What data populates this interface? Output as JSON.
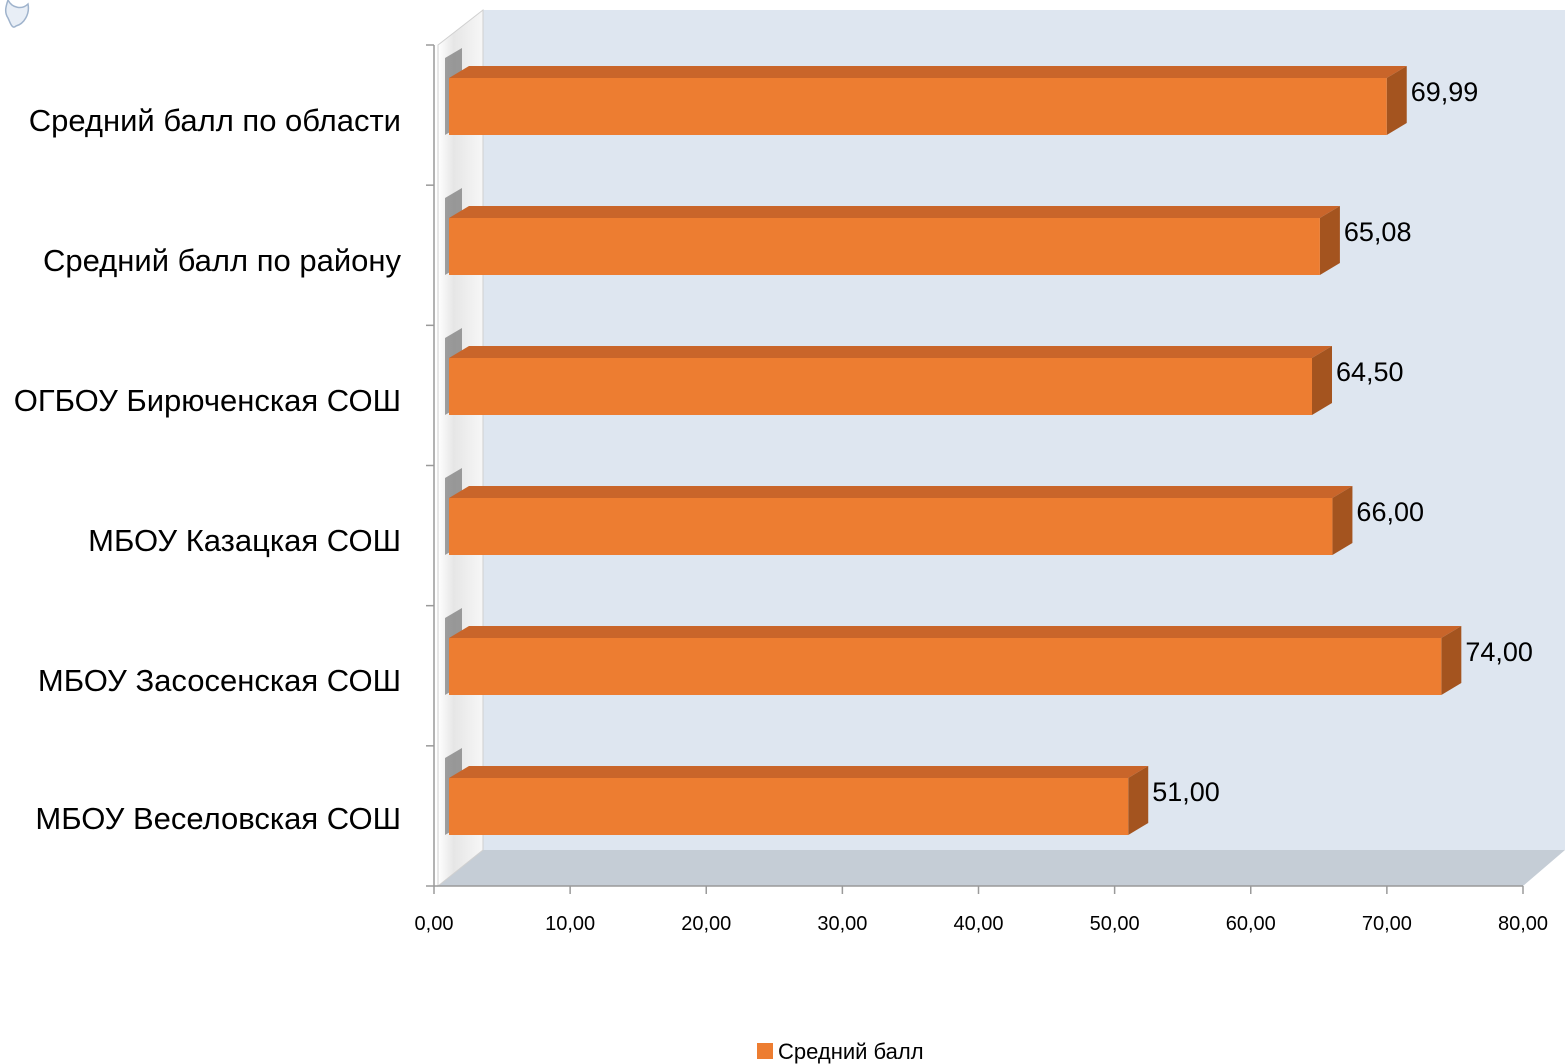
{
  "chart_data": {
    "type": "bar",
    "orientation": "horizontal",
    "three_d": true,
    "categories": [
      "Средний балл по области",
      "Средний балл по району",
      "ОГБОУ Бирюченская СОШ",
      "МБОУ Казацкая СОШ",
      "МБОУ Засосенская СОШ",
      "МБОУ Веселовская СОШ"
    ],
    "series": [
      {
        "name": "Средний балл",
        "values": [
          69.99,
          65.08,
          64.5,
          66.0,
          74.0,
          51.0
        ],
        "value_labels": [
          "69,99",
          "65,08",
          "64,50",
          "66,00",
          "74,00",
          "51,00"
        ],
        "color": "#ED7D31"
      }
    ],
    "xlim": [
      0,
      80
    ],
    "x_ticks": [
      0,
      10,
      20,
      30,
      40,
      50,
      60,
      70,
      80
    ],
    "x_tick_labels": [
      "0,00",
      "10,00",
      "20,00",
      "30,00",
      "40,00",
      "50,00",
      "60,00",
      "70,00",
      "80,00"
    ],
    "legend_position": "bottom",
    "grid": false,
    "colors": {
      "bar_front": "#ED7D31",
      "bar_top": "#C9652A",
      "bar_side": "#A4541F",
      "back_wall": "#DEE6F0",
      "floor": "#C5CDD6"
    }
  }
}
